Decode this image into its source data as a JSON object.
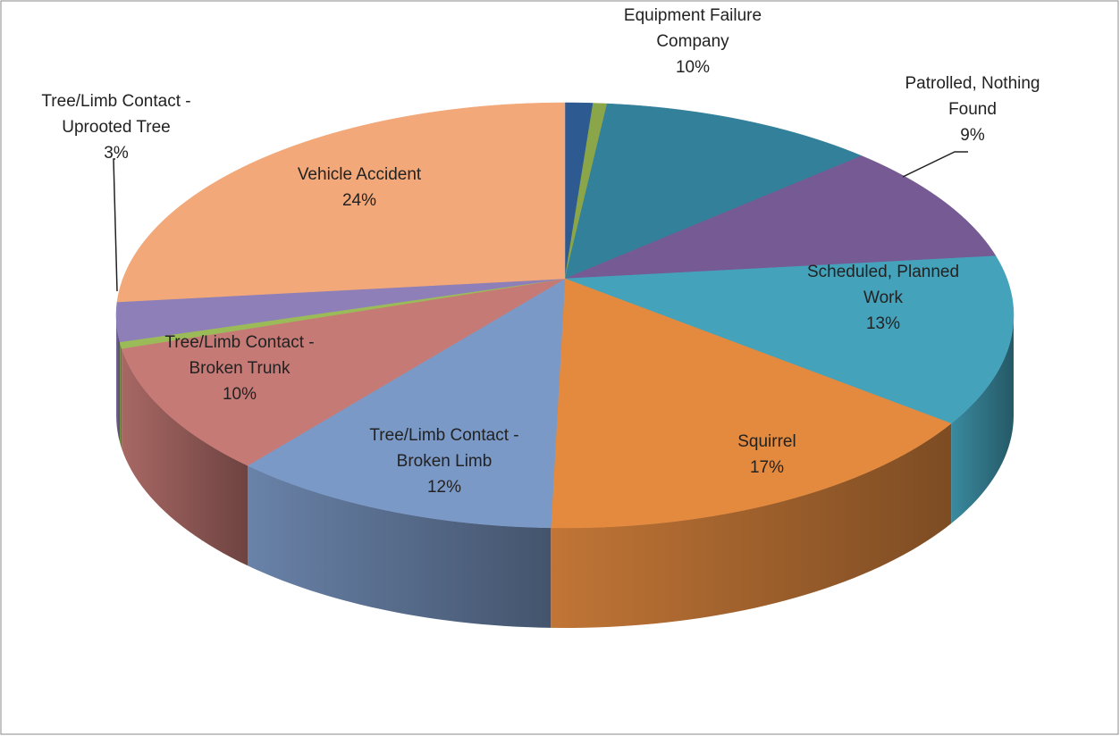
{
  "chart_data": {
    "type": "pie3d",
    "categories": [
      null,
      null,
      "Equipment Failure Company",
      "Patrolled, Nothing Found",
      "Scheduled, Planned Work",
      "Squirrel",
      "Tree/Limb Contact - Broken Limb",
      "Tree/Limb Contact - Broken Trunk",
      null,
      "Tree/Limb Contact - Uprooted Tree",
      "Vehicle Accident"
    ],
    "values": [
      1,
      0.5,
      10,
      9,
      13,
      17,
      12,
      10,
      0.5,
      3,
      24
    ],
    "value_labels": [
      null,
      null,
      "10%",
      "9%",
      "13%",
      "17%",
      "12%",
      "10%",
      null,
      "3%",
      "24%"
    ],
    "colors": [
      "#2c5a91",
      "#8aa648",
      "#33809a",
      "#765a93",
      "#44a2bb",
      "#e38a3f",
      "#7b99c6",
      "#c67a76",
      "#9bbb59",
      "#8e7fb8",
      "#f2a878"
    ]
  }
}
